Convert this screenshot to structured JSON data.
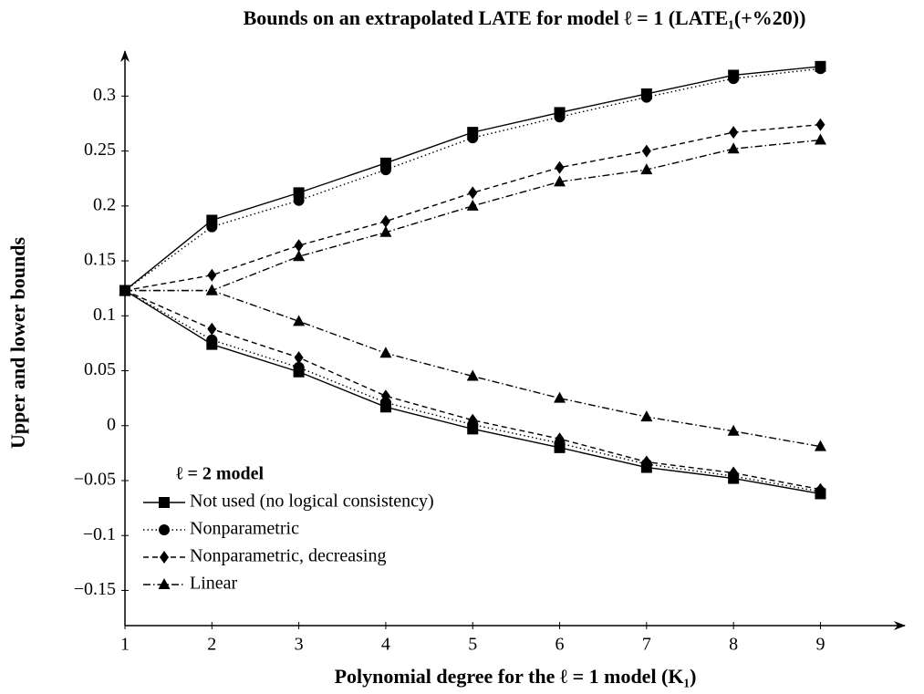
{
  "chart_data": {
    "type": "line",
    "title": "Bounds on an extrapolated LATE for model ℓ = 1 (LATE₁(+%20))",
    "xlabel": "Polynomial degree for the ℓ = 1 model (K₁)",
    "ylabel": "Upper and lower bounds",
    "legend_title": "ℓ = 2 model",
    "legend": "lower left",
    "x": [
      1,
      2,
      3,
      4,
      5,
      6,
      7,
      8,
      9
    ],
    "xlim": [
      1,
      9.95
    ],
    "ylim": [
      -0.182,
      0.336
    ],
    "xticks": [
      1,
      2,
      3,
      4,
      5,
      6,
      7,
      8,
      9
    ],
    "yticks": [
      {
        "value": -0.15,
        "label": "−0.15"
      },
      {
        "value": -0.1,
        "label": "−0.1"
      },
      {
        "value": -0.05,
        "label": "−0.05"
      },
      0,
      0.05,
      0.1,
      0.15,
      0.2,
      0.25,
      0.3
    ],
    "series": [
      {
        "name": "Not used (no logical consistency)",
        "color": "#000000",
        "dash": "solid",
        "marker": "square",
        "upper": [
          0.123,
          0.187,
          0.212,
          0.239,
          0.267,
          0.285,
          0.302,
          0.319,
          0.327
        ],
        "lower": [
          0.123,
          0.074,
          0.049,
          0.017,
          -0.003,
          -0.02,
          -0.038,
          -0.048,
          -0.062
        ]
      },
      {
        "name": "Nonparametric",
        "color": "#000000",
        "dash": "dotted",
        "marker": "circle",
        "upper": [
          0.123,
          0.181,
          0.205,
          0.233,
          0.262,
          0.281,
          0.299,
          0.316,
          0.325
        ],
        "lower": [
          0.123,
          0.078,
          0.053,
          0.021,
          0.001,
          -0.016,
          -0.035,
          -0.046,
          -0.06
        ]
      },
      {
        "name": "Nonparametric, decreasing",
        "color": "#000000",
        "dash": "dashed",
        "marker": "diamond",
        "upper": [
          0.123,
          0.137,
          0.164,
          0.186,
          0.212,
          0.235,
          0.25,
          0.267,
          0.274
        ],
        "lower": [
          0.123,
          0.088,
          0.062,
          0.027,
          0.005,
          -0.012,
          -0.033,
          -0.043,
          -0.058
        ]
      },
      {
        "name": "Linear",
        "color": "#000000",
        "dash": "dashdot",
        "marker": "triangle",
        "upper": [
          0.123,
          0.123,
          0.154,
          0.176,
          0.2,
          0.222,
          0.233,
          0.252,
          0.26
        ],
        "lower": [
          0.123,
          0.123,
          0.095,
          0.066,
          0.045,
          0.025,
          0.008,
          -0.005,
          -0.019
        ]
      }
    ]
  }
}
